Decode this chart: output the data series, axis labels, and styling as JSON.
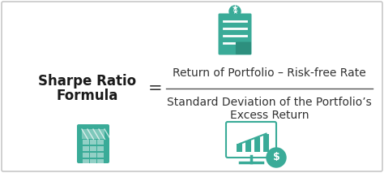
{
  "bg_color": "#ffffff",
  "border_color": "#c8c8c8",
  "teal_color": "#3aab98",
  "teal_dark": "#2d8f7e",
  "title_line1": "Sharpe Ratio",
  "title_line2": "Formula",
  "equals_sign": "=",
  "numerator": "Return of Portfolio – Risk-free Rate",
  "denominator_line1": "Standard Deviation of the Portfolio’s",
  "denominator_line2": "Excess Return",
  "title_fontsize": 12,
  "formula_fontsize": 10,
  "title_color": "#1a1a1a",
  "formula_color": "#333333",
  "fig_width": 4.74,
  "fig_height": 2.13,
  "dpi": 100
}
